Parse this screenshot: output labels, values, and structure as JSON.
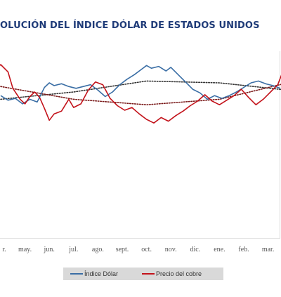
{
  "title": "OLUCIÓN DEL ÍNDICE DÓLAR DE ESTADOS UNIDOS",
  "chart_data": {
    "type": "line",
    "categories": [
      "r.",
      "may.",
      "jun.",
      "jul.",
      "ago.",
      "sept.",
      "oct.",
      "nov.",
      "dic.",
      "ene.",
      "feb.",
      "mar."
    ],
    "grid": false,
    "legend_position": "bottom",
    "series": [
      {
        "name": "Índice Dólar",
        "color": "#3a6ea5",
        "values": [
          [
            0.0,
            0.66
          ],
          [
            0.3,
            0.61
          ],
          [
            0.6,
            0.63
          ],
          [
            0.9,
            0.57
          ],
          [
            1.2,
            0.62
          ],
          [
            1.5,
            0.59
          ],
          [
            1.8,
            0.75
          ],
          [
            2.0,
            0.8
          ],
          [
            2.2,
            0.77
          ],
          [
            2.5,
            0.79
          ],
          [
            2.8,
            0.76
          ],
          [
            3.1,
            0.74
          ],
          [
            3.4,
            0.76
          ],
          [
            3.7,
            0.78
          ],
          [
            4.0,
            0.72
          ],
          [
            4.3,
            0.65
          ],
          [
            4.6,
            0.7
          ],
          [
            4.9,
            0.78
          ],
          [
            5.2,
            0.84
          ],
          [
            5.5,
            0.89
          ],
          [
            5.8,
            0.95
          ],
          [
            6.0,
            0.99
          ],
          [
            6.2,
            0.96
          ],
          [
            6.5,
            0.98
          ],
          [
            6.8,
            0.93
          ],
          [
            7.0,
            0.97
          ],
          [
            7.3,
            0.89
          ],
          [
            7.6,
            0.81
          ],
          [
            7.9,
            0.73
          ],
          [
            8.2,
            0.69
          ],
          [
            8.5,
            0.62
          ],
          [
            8.8,
            0.66
          ],
          [
            9.1,
            0.63
          ],
          [
            9.4,
            0.66
          ],
          [
            9.7,
            0.7
          ],
          [
            10.0,
            0.75
          ],
          [
            10.3,
            0.8
          ],
          [
            10.6,
            0.82
          ],
          [
            10.9,
            0.79
          ],
          [
            11.2,
            0.77
          ],
          [
            11.5,
            0.74
          ]
        ]
      },
      {
        "name": "Precio del cobre",
        "color": "#c3131b",
        "values": [
          [
            -0.2,
            0.96
          ],
          [
            0.0,
            1.0
          ],
          [
            0.3,
            0.92
          ],
          [
            0.5,
            0.74
          ],
          [
            0.8,
            0.62
          ],
          [
            1.0,
            0.57
          ],
          [
            1.2,
            0.65
          ],
          [
            1.4,
            0.7
          ],
          [
            1.6,
            0.64
          ],
          [
            1.8,
            0.52
          ],
          [
            2.0,
            0.39
          ],
          [
            2.2,
            0.46
          ],
          [
            2.5,
            0.49
          ],
          [
            2.8,
            0.62
          ],
          [
            3.0,
            0.53
          ],
          [
            3.3,
            0.57
          ],
          [
            3.6,
            0.72
          ],
          [
            3.9,
            0.81
          ],
          [
            4.2,
            0.78
          ],
          [
            4.5,
            0.63
          ],
          [
            4.8,
            0.55
          ],
          [
            5.1,
            0.5
          ],
          [
            5.4,
            0.53
          ],
          [
            5.7,
            0.46
          ],
          [
            6.0,
            0.4
          ],
          [
            6.3,
            0.36
          ],
          [
            6.6,
            0.42
          ],
          [
            6.9,
            0.38
          ],
          [
            7.2,
            0.44
          ],
          [
            7.5,
            0.49
          ],
          [
            7.8,
            0.55
          ],
          [
            8.1,
            0.6
          ],
          [
            8.4,
            0.67
          ],
          [
            8.7,
            0.6
          ],
          [
            9.0,
            0.56
          ],
          [
            9.3,
            0.61
          ],
          [
            9.6,
            0.66
          ],
          [
            9.9,
            0.73
          ],
          [
            10.2,
            0.64
          ],
          [
            10.5,
            0.56
          ],
          [
            10.8,
            0.62
          ],
          [
            11.1,
            0.7
          ],
          [
            11.4,
            0.78
          ],
          [
            11.6,
            0.92
          ],
          [
            11.8,
            0.98
          ]
        ]
      }
    ],
    "trendlines": [
      {
        "series": "Índice Dólar",
        "color": "#333333",
        "style": "dotted",
        "values": [
          [
            0.0,
            0.62
          ],
          [
            3.0,
            0.7
          ],
          [
            6.0,
            0.82
          ],
          [
            9.0,
            0.8
          ],
          [
            11.8,
            0.72
          ]
        ]
      },
      {
        "series": "Precio del cobre",
        "color": "#7a1a1a",
        "style": "dotted",
        "values": [
          [
            0.0,
            0.76
          ],
          [
            3.0,
            0.62
          ],
          [
            6.0,
            0.56
          ],
          [
            9.0,
            0.62
          ],
          [
            11.8,
            0.8
          ]
        ]
      }
    ]
  }
}
